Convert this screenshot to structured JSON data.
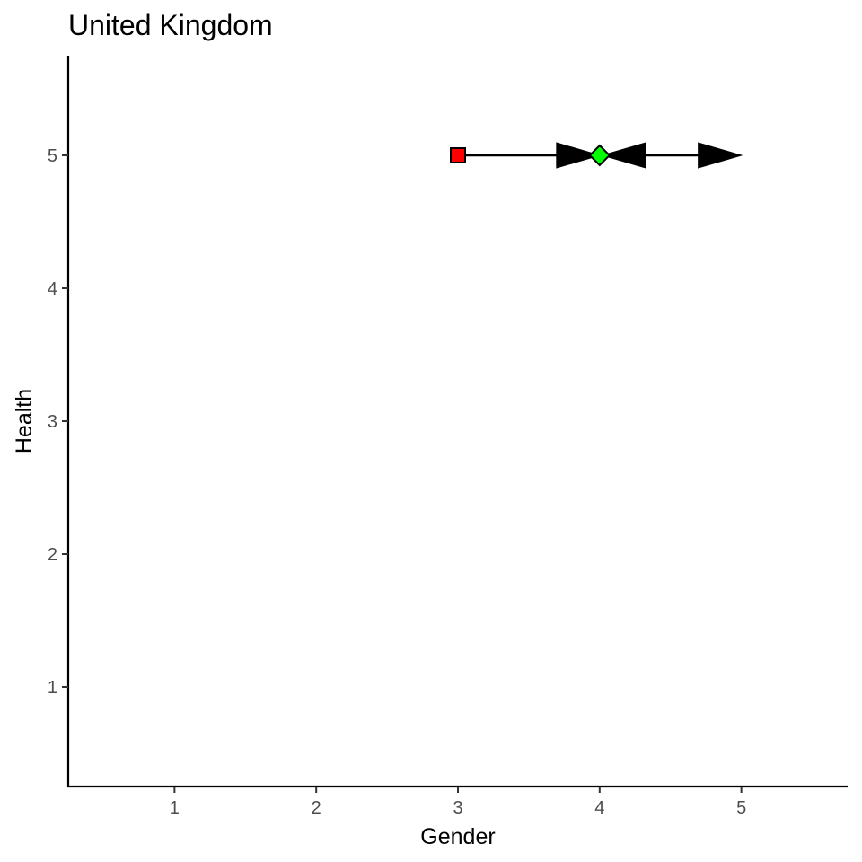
{
  "chart_data": {
    "type": "scatter",
    "title": "United Kingdom",
    "xlabel": "Gender",
    "ylabel": "Health",
    "xlim": [
      0.25,
      5.75
    ],
    "ylim": [
      0.25,
      5.75
    ],
    "x_ticks": [
      1,
      2,
      3,
      4,
      5
    ],
    "y_ticks": [
      1,
      2,
      3,
      4,
      5
    ],
    "grid": false,
    "points": [
      {
        "x": 3,
        "y": 5,
        "shape": "square",
        "color": "#ff0000"
      },
      {
        "x": 4,
        "y": 5,
        "shape": "diamond",
        "color": "#00ff00"
      }
    ],
    "arrows": [
      {
        "x_start": 3,
        "y_start": 5,
        "x_end": 4,
        "y_end": 5,
        "color": "#000000"
      },
      {
        "x_start": 4.3,
        "y_start": 5,
        "x_end": 4.02,
        "y_end": 5,
        "color": "#000000"
      },
      {
        "x_start": 4.3,
        "y_start": 5,
        "x_end": 5,
        "y_end": 5,
        "color": "#000000"
      }
    ]
  }
}
